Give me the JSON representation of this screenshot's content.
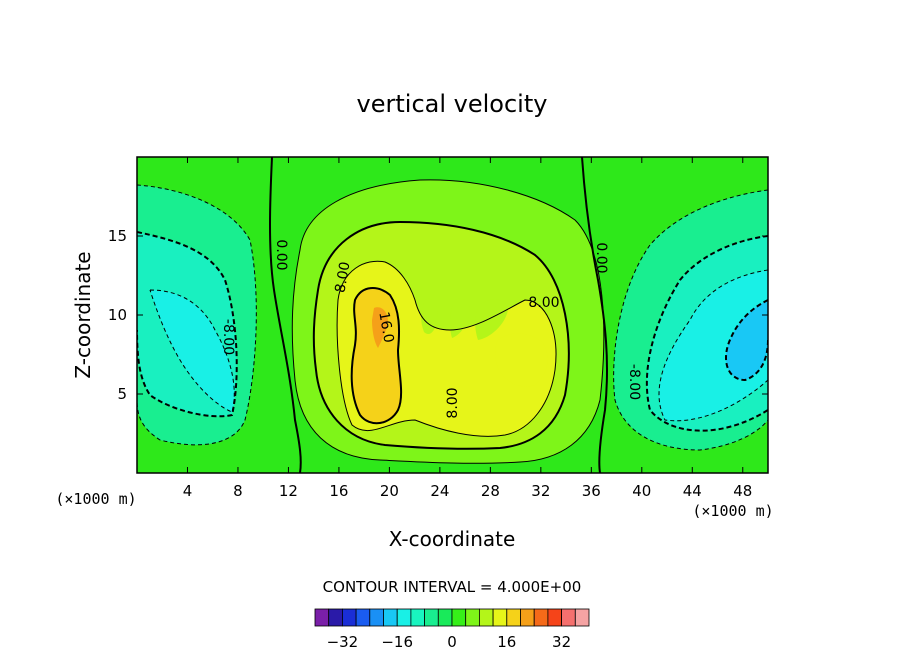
{
  "chart_data": {
    "type": "heatmap",
    "title": "vertical velocity",
    "xlabel": "X-coordinate",
    "ylabel": "Z-coordinate",
    "x_unit": "(×1000 m)",
    "y_unit": "(×1000 m)",
    "xlim": [
      0,
      50
    ],
    "ylim": [
      0,
      20
    ],
    "x_ticks": [
      4,
      8,
      12,
      16,
      20,
      24,
      28,
      32,
      36,
      40,
      44,
      48
    ],
    "y_ticks": [
      5,
      10,
      15
    ],
    "contour_interval_text": "CONTOUR INTERVAL = 4.000E+00",
    "contour_labels": [
      "0.00",
      "0.00",
      "8.00",
      "16.0",
      "8.00",
      "8.00",
      "-8.00",
      "-8.00"
    ],
    "colorbar": {
      "colors": [
        "#7a1fa8",
        "#2a1aa8",
        "#1a2ed6",
        "#1a5cf0",
        "#1a90f5",
        "#19c8f5",
        "#19f0e6",
        "#19f5c0",
        "#19ee90",
        "#19ea5a",
        "#36ef19",
        "#7ef519",
        "#b4f519",
        "#e6f519",
        "#f5d219",
        "#f5a019",
        "#f56a19",
        "#f54419",
        "#f5706e",
        "#f5a3a3"
      ],
      "tick_values": [
        -32,
        -16,
        0,
        16,
        32
      ]
    }
  }
}
